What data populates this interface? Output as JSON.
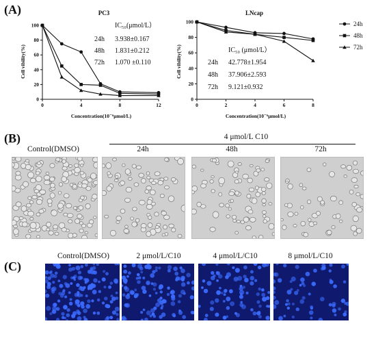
{
  "panels": {
    "a": "(A)",
    "b": "(B)",
    "c": "(C)"
  },
  "chart_data": [
    {
      "type": "line",
      "title": "PC3",
      "xlabel": "Concentration(10⁻⁶μmol/L)",
      "ylabel": "Cell vibility(%)",
      "x": [
        0,
        2,
        4,
        6,
        8,
        12
      ],
      "xticks": [
        "0",
        "4",
        "8",
        "12"
      ],
      "xlim": [
        0,
        12
      ],
      "yticks": [
        "0",
        "20",
        "40",
        "60",
        "80",
        "100"
      ],
      "ylim": [
        0,
        100
      ],
      "series": [
        {
          "name": "24h",
          "values": [
            100,
            75,
            64,
            21,
            10,
            9
          ]
        },
        {
          "name": "48h",
          "values": [
            100,
            45,
            20,
            19,
            8,
            7
          ]
        },
        {
          "name": "72h",
          "values": [
            100,
            30,
            12,
            7,
            5,
            5
          ]
        }
      ],
      "ic50": {
        "header": "IC₅₀(μmol/L）",
        "rows": [
          {
            "time": "24h",
            "value": "3.938±0.167"
          },
          {
            "time": "48h",
            "value": "1.831±0.212"
          },
          {
            "time": "72h",
            "value": "1.070 ±0.110"
          }
        ]
      }
    },
    {
      "type": "line",
      "title": "LNcap",
      "xlabel": "Concentration(10⁻⁶μmol/L)",
      "ylabel": "Cell vibility(%)",
      "x": [
        0,
        2,
        4,
        6,
        8
      ],
      "xticks": [
        "0",
        "2",
        "4",
        "6",
        "8"
      ],
      "xlim": [
        0,
        8
      ],
      "yticks": [
        "0",
        "20",
        "40",
        "60",
        "80",
        "100"
      ],
      "ylim": [
        0,
        100
      ],
      "legend_position": "top-right",
      "series": [
        {
          "name": "24h",
          "values": [
            100,
            93,
            86,
            85,
            78
          ]
        },
        {
          "name": "48h",
          "values": [
            100,
            89,
            84,
            80,
            76
          ]
        },
        {
          "name": "72h",
          "values": [
            100,
            87,
            84,
            75,
            50
          ]
        }
      ],
      "ic50": {
        "header": "IC₅₀ (μmol/L）",
        "rows": [
          {
            "time": "24h",
            "value": "42.778±1.954"
          },
          {
            "time": "48h",
            "value": "37.906±2.593"
          },
          {
            "time": "72h",
            "value": "9.121±0.932"
          }
        ]
      }
    }
  ],
  "panel_b": {
    "treatment_header": "4 μmol/L C10",
    "labels": [
      "Control(DMSO)",
      "24h",
      "48h",
      "72h"
    ]
  },
  "panel_c": {
    "labels": [
      "Control(DMSO)",
      "2 μmol/L/C10",
      "4 μmol/L/C10",
      "8 μmol/L/C10"
    ]
  },
  "colors": {
    "line": "#111111",
    "nuclei": "#3b6bff",
    "fluor_bg": "#0f1a6e",
    "brightfield_bg": "#c9c9c9"
  }
}
